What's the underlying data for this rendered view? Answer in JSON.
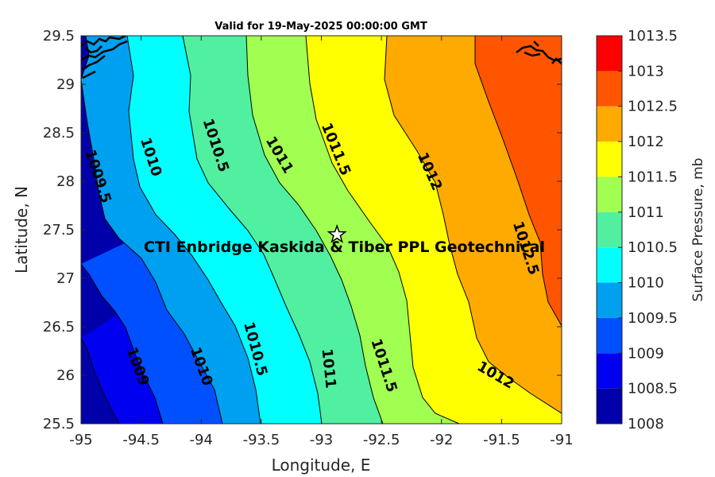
{
  "chart_data": {
    "type": "contour",
    "title": "Valid for 19-May-2025 00:00:00 GMT",
    "xlabel": "Longitude, E",
    "ylabel": "Latitude, N",
    "xlim": [
      -95,
      -91
    ],
    "ylim": [
      25.5,
      29.5
    ],
    "x_ticks": [
      "-95",
      "-94.5",
      "-94",
      "-93.5",
      "-93",
      "-92.5",
      "-92",
      "-91.5",
      "-91"
    ],
    "y_ticks": [
      "25.5",
      "26",
      "26.5",
      "27",
      "27.5",
      "28",
      "28.5",
      "29",
      "29.5"
    ],
    "colorbar": {
      "label": "Surface Pressure, mb",
      "levels": [
        1008,
        1008.5,
        1009,
        1009.5,
        1010,
        1010.5,
        1011,
        1011.5,
        1012,
        1012.5,
        1013,
        1013.5
      ],
      "tick_labels": [
        "1008",
        "1008.5",
        "1009",
        "1009.5",
        "1010",
        "1010.5",
        "1011",
        "1011.5",
        "1012",
        "1012.5",
        "1013",
        "1013.5"
      ],
      "colors": [
        "#0000AA",
        "#0000F0",
        "#0050FF",
        "#00A0F0",
        "#00FFFF",
        "#50F0A0",
        "#A0FF50",
        "#FFFF00",
        "#FFAA00",
        "#FF5500",
        "#FF0000",
        "#AA0000"
      ]
    },
    "contour_labels": [
      {
        "text": "1009.5",
        "lon": -94.86,
        "lat": 28.05,
        "angle": 72
      },
      {
        "text": "1010",
        "lon": -94.42,
        "lat": 28.25,
        "angle": 72
      },
      {
        "text": "1010.5",
        "lon": -93.88,
        "lat": 28.37,
        "angle": 72
      },
      {
        "text": "1011",
        "lon": -93.35,
        "lat": 28.27,
        "angle": 60
      },
      {
        "text": "1011.5",
        "lon": -92.88,
        "lat": 28.33,
        "angle": 68
      },
      {
        "text": "1012",
        "lon": -92.1,
        "lat": 28.1,
        "angle": 66
      },
      {
        "text": "1012.5",
        "lon": -91.3,
        "lat": 27.31,
        "angle": 72
      },
      {
        "text": "1009",
        "lon": -94.53,
        "lat": 26.09,
        "angle": 70
      },
      {
        "text": "1010",
        "lon": -94.0,
        "lat": 26.09,
        "angle": 70
      },
      {
        "text": "1010.5",
        "lon": -93.55,
        "lat": 26.27,
        "angle": 75
      },
      {
        "text": "1011",
        "lon": -92.94,
        "lat": 26.07,
        "angle": 84
      },
      {
        "text": "1011.5",
        "lon": -92.48,
        "lat": 26.1,
        "angle": 72
      },
      {
        "text": "1012",
        "lon": -91.55,
        "lat": 26.0,
        "angle": 30
      }
    ],
    "site": {
      "label": "CTI Enbridge  Kaskida & Tiber PPL Geotechnical",
      "lon": -92.87,
      "lat": 27.45,
      "marker": "star-icon"
    }
  }
}
